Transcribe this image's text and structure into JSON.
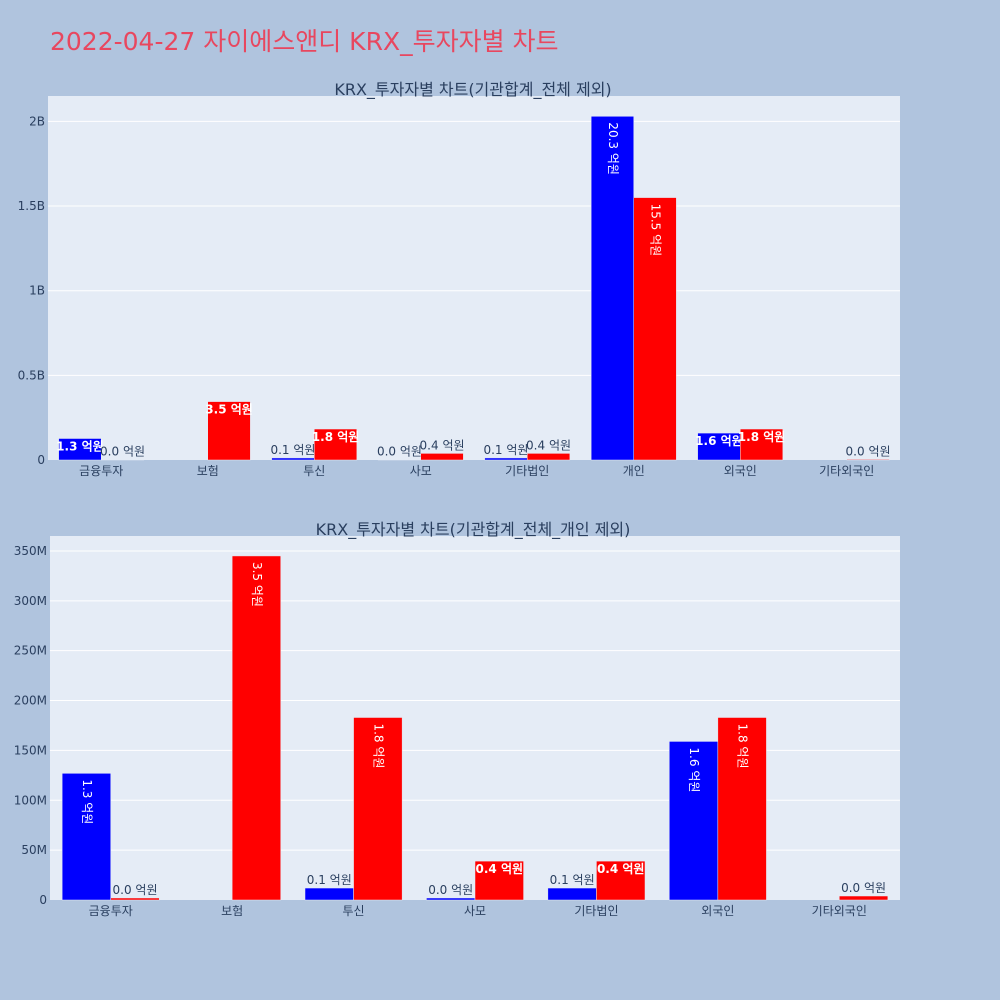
{
  "page_title": "2022-04-27 자이에스앤디 KRX_투자자별 차트",
  "colors": {
    "background": "#b0c4de",
    "plot_bg": "#e5ecf6",
    "buy": "#0000ff",
    "sell": "#ff0000",
    "title": "#e8475f",
    "text": "#2a3f5f"
  },
  "chart_data": [
    {
      "type": "bar",
      "title": "KRX_투자자별 차트(기관합계_전체 제외)",
      "categories": [
        "금융투자",
        "보험",
        "투신",
        "사모",
        "기타법인",
        "개인",
        "외국인",
        "기타외국인"
      ],
      "ylim": [
        0,
        2150000000
      ],
      "ytick_values": [
        0,
        500000000,
        1000000000,
        1500000000,
        2000000000
      ],
      "ytick_labels": [
        "0",
        "0.5B",
        "1B",
        "1.5B",
        "2B"
      ],
      "grid": true,
      "series": [
        {
          "color": "#0000ff",
          "values": [
            127000000,
            0,
            12000000,
            2000000,
            12000000,
            2030000000,
            159000000,
            0
          ],
          "labels": [
            "1.3 억원",
            "",
            "0.1 억원",
            "0.0 억원",
            "0.1 억원",
            "20.3 억원",
            "1.6 억원",
            ""
          ]
        },
        {
          "color": "#ff0000",
          "values": [
            2000000,
            345000000,
            183000000,
            39000000,
            39000000,
            1550000000,
            183000000,
            4000000
          ],
          "labels": [
            "0.0 억원",
            "3.5 억원",
            "1.8 억원",
            "0.4 억원",
            "0.4 억원",
            "15.5 억원",
            "1.8 억원",
            "0.0 억원"
          ]
        }
      ]
    },
    {
      "type": "bar",
      "title": "KRX_투자자별 차트(기관합계_전체_개인 제외)",
      "categories": [
        "금융투자",
        "보험",
        "투신",
        "사모",
        "기타법인",
        "외국인",
        "기타외국인"
      ],
      "ylim": [
        0,
        365000000
      ],
      "ytick_values": [
        0,
        50000000,
        100000000,
        150000000,
        200000000,
        250000000,
        300000000,
        350000000
      ],
      "ytick_labels": [
        "0",
        "50M",
        "100M",
        "150M",
        "200M",
        "250M",
        "300M",
        "350M"
      ],
      "grid": true,
      "series": [
        {
          "color": "#0000ff",
          "values": [
            127000000,
            0,
            12000000,
            2000000,
            12000000,
            159000000,
            0
          ],
          "labels": [
            "1.3 억원",
            "",
            "0.1 억원",
            "0.0 억원",
            "0.1 억원",
            "1.6 억원",
            ""
          ]
        },
        {
          "color": "#ff0000",
          "values": [
            2000000,
            345000000,
            183000000,
            39000000,
            39000000,
            183000000,
            4000000
          ],
          "labels": [
            "0.0 억원",
            "3.5 억원",
            "1.8 억원",
            "0.4 억원",
            "0.4 억원",
            "1.8 억원",
            "0.0 억원"
          ]
        }
      ]
    }
  ]
}
